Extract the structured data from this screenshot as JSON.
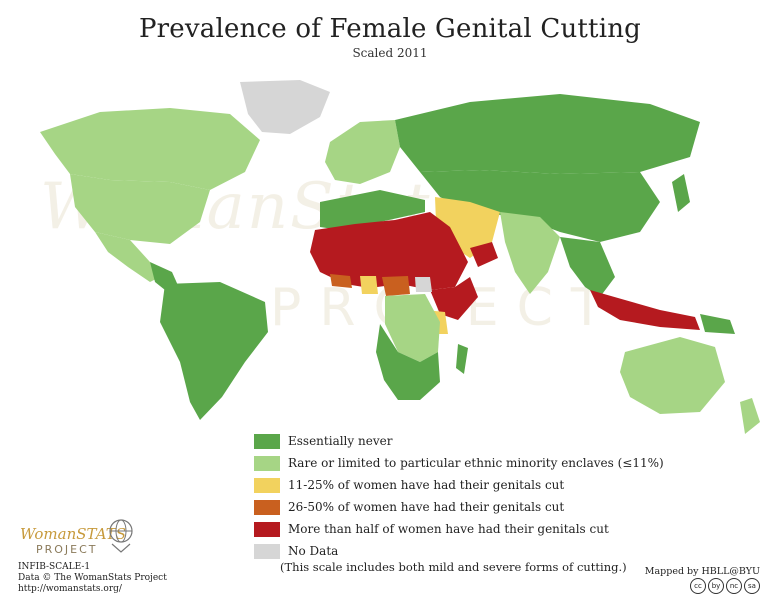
{
  "title": "Prevalence of Female Genital Cutting",
  "subtitle": "Scaled 2011",
  "watermark": {
    "line1": "WomanStats",
    "line2": "PROJECT"
  },
  "colors": {
    "essentially_never": "#5aa64a",
    "rare": "#a6d585",
    "low": "#f2d25e",
    "mid": "#c9601f",
    "high": "#b51a1f",
    "no_data": "#d6d6d6",
    "ocean": "#ffffff"
  },
  "legend": [
    {
      "key": "essentially_never",
      "label": "Essentially never",
      "color": "#5aa64a"
    },
    {
      "key": "rare",
      "label": "Rare or limited to particular ethnic minority enclaves (≤11%)",
      "color": "#a6d585"
    },
    {
      "key": "low",
      "label": "11-25% of women have had their genitals cut",
      "color": "#f2d25e"
    },
    {
      "key": "mid",
      "label": "26-50% of women have had their genitals cut",
      "color": "#c9601f"
    },
    {
      "key": "high",
      "label": "More than half of women have had their genitals cut",
      "color": "#b51a1f"
    },
    {
      "key": "no_data",
      "label": "No Data",
      "color": "#d6d6d6"
    }
  ],
  "note": "(This scale includes both mild and severe forms of cutting.)",
  "logo": {
    "brand": "WomanSTATS",
    "sub": "PROJECT"
  },
  "credits": {
    "id": "INFIB-SCALE-1",
    "data": "Data © The WomanStats Project",
    "url": "http://womanstats.org/",
    "mapped_by": "Mapped by HBLL@BYU"
  },
  "cc_icons": [
    "cc",
    "by",
    "nc",
    "sa"
  ]
}
